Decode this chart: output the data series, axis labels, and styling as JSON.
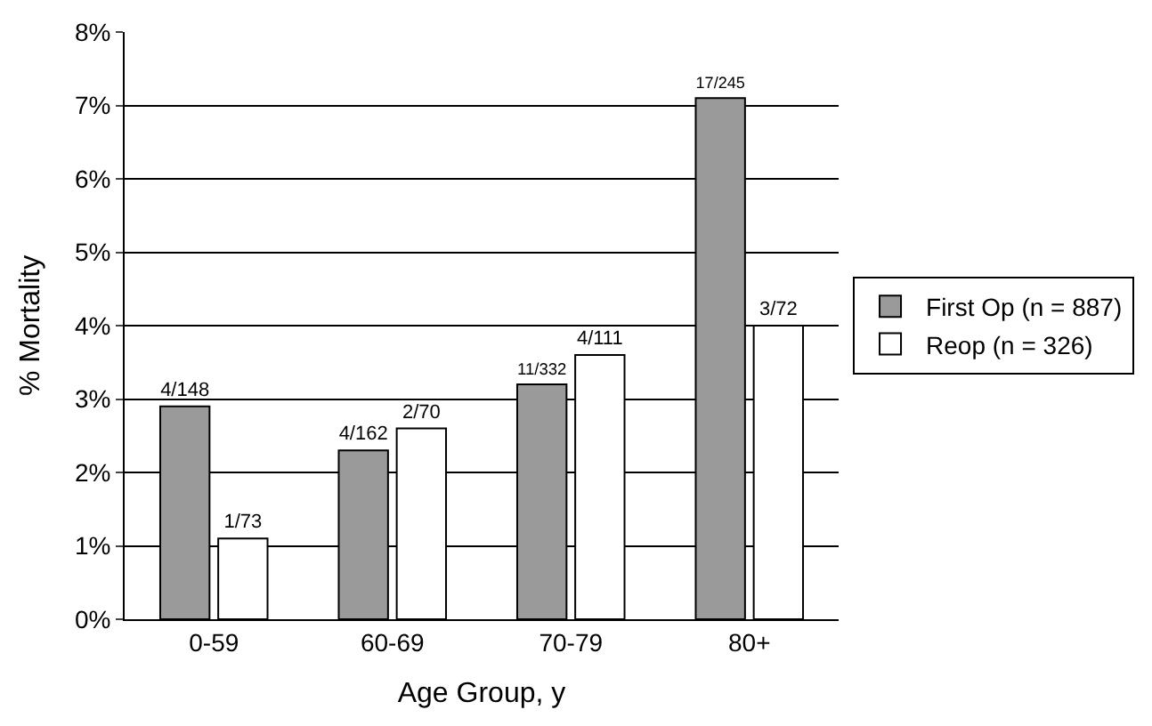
{
  "chart_data": {
    "type": "bar",
    "xlabel": "Age Group, y",
    "ylabel": "% Mortality",
    "categories": [
      "0-59",
      "60-69",
      "70-79",
      "80+"
    ],
    "series": [
      {
        "name": "First Op (n = 887)",
        "color": "#9a9a9a",
        "values": [
          2.9,
          2.3,
          3.2,
          7.1
        ],
        "value_labels": [
          "4/148",
          "4/162",
          "11/332",
          "17/245"
        ]
      },
      {
        "name": "Reop (n = 326)",
        "color": "#ffffff",
        "values": [
          1.1,
          2.6,
          3.6,
          4.0
        ],
        "value_labels": [
          "1/73",
          "2/70",
          "4/111",
          "3/72"
        ]
      }
    ],
    "ylim": [
      0,
      8
    ],
    "yticks": [
      {
        "value": 0,
        "label": "0%"
      },
      {
        "value": 1,
        "label": "1%"
      },
      {
        "value": 2,
        "label": "2%"
      },
      {
        "value": 3,
        "label": "3%"
      },
      {
        "value": 4,
        "label": "4%"
      },
      {
        "value": 5,
        "label": "5%"
      },
      {
        "value": 6,
        "label": "6%"
      },
      {
        "value": 7,
        "label": "7%"
      },
      {
        "value": 8,
        "label": "8%"
      }
    ],
    "grid": "y",
    "legend": "right"
  }
}
